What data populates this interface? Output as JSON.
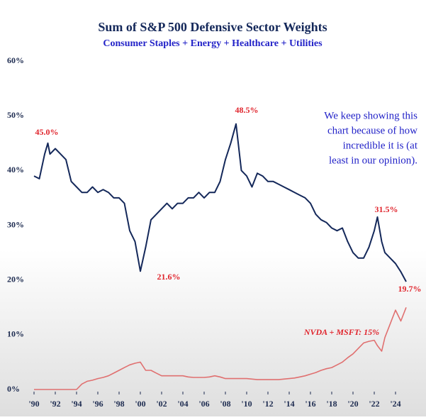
{
  "chart_data": {
    "type": "line",
    "title": "Sum of S&P 500 Defensive Sector Weights",
    "subtitle": "Consumer Staples + Energy + Healthcare + Utilities",
    "annotations": [
      "45.0%",
      "21.6%",
      "48.5%",
      "31.5%",
      "19.7%",
      "NVDA + MSFT: 15%"
    ],
    "note_lines": [
      "We keep showing this",
      "chart because of how",
      "incredible it is (at",
      "least in our opinion)."
    ],
    "x": [
      1990,
      1990.5,
      1991,
      1991.3,
      1991.5,
      1992,
      1992.5,
      1993,
      1993.5,
      1994,
      1994.5,
      1995,
      1995.5,
      1996,
      1996.5,
      1997,
      1997.5,
      1998,
      1998.5,
      1999,
      1999.5,
      2000,
      2000.5,
      2001,
      2001.5,
      2002,
      2002.5,
      2003,
      2003.5,
      2004,
      2004.5,
      2005,
      2005.5,
      2006,
      2006.5,
      2007,
      2007.5,
      2008,
      2008.5,
      2009,
      2009.5,
      2010,
      2010.5,
      2011,
      2011.5,
      2012,
      2012.5,
      2013,
      2013.5,
      2014,
      2014.5,
      2015,
      2015.5,
      2016,
      2016.5,
      2017,
      2017.5,
      2018,
      2018.5,
      2019,
      2019.5,
      2020,
      2020.5,
      2021,
      2021.5,
      2022,
      2022.3,
      2022.7,
      2023,
      2023.5,
      2024,
      2024.5,
      2025
    ],
    "series": [
      {
        "name": "Defensive Sectors",
        "color": "#14285a",
        "values": [
          39,
          38.5,
          43,
          45.0,
          43,
          44,
          43,
          42,
          38,
          37,
          36,
          36,
          37,
          36,
          36.5,
          36,
          35,
          35,
          34,
          29,
          27,
          21.6,
          26,
          31,
          32,
          33,
          34,
          33,
          34,
          34,
          35,
          35,
          36,
          35,
          36,
          36,
          38,
          42,
          45,
          48.5,
          40,
          39,
          37,
          39.5,
          39,
          38,
          38,
          37.5,
          37,
          36.5,
          36,
          35.5,
          35,
          34,
          32,
          31,
          30.5,
          29.5,
          29,
          29.5,
          27,
          25,
          24,
          24,
          26,
          29,
          31.5,
          27,
          25,
          24,
          23,
          21.5,
          19.7
        ]
      },
      {
        "name": "NVDA + MSFT",
        "color": "#e07070",
        "values": [
          0,
          0,
          0,
          0,
          0,
          0,
          0,
          0,
          0,
          0,
          1,
          1.5,
          1.7,
          2,
          2.2,
          2.5,
          3,
          3.5,
          4,
          4.5,
          4.8,
          5,
          3.5,
          3.5,
          3,
          2.5,
          2.5,
          2.5,
          2.5,
          2.5,
          2.3,
          2.2,
          2.2,
          2.2,
          2.3,
          2.5,
          2.3,
          2,
          2,
          2,
          2,
          2,
          1.9,
          1.8,
          1.8,
          1.8,
          1.8,
          1.8,
          1.9,
          2,
          2.1,
          2.3,
          2.5,
          2.8,
          3.1,
          3.5,
          3.8,
          4,
          4.5,
          5,
          5.8,
          6.5,
          7.5,
          8.5,
          8.8,
          9,
          8,
          7,
          9.5,
          12,
          14.5,
          12.5,
          15
        ]
      }
    ],
    "xlim": [
      1990,
      2025.5
    ],
    "xticks": [
      {
        "value": 1990,
        "label": "'90"
      },
      {
        "value": 1992,
        "label": "'92"
      },
      {
        "value": 1994,
        "label": "'94"
      },
      {
        "value": 1996,
        "label": "'96"
      },
      {
        "value": 1998,
        "label": "'98"
      },
      {
        "value": 2000,
        "label": "'00"
      },
      {
        "value": 2002,
        "label": "'02"
      },
      {
        "value": 2004,
        "label": "'04"
      },
      {
        "value": 2006,
        "label": "'06"
      },
      {
        "value": 2008,
        "label": "'08"
      },
      {
        "value": 2010,
        "label": "'10"
      },
      {
        "value": 2012,
        "label": "'12"
      },
      {
        "value": 2014,
        "label": "'14"
      },
      {
        "value": 2016,
        "label": "'16"
      },
      {
        "value": 2018,
        "label": "'18"
      },
      {
        "value": 2020,
        "label": "'20"
      },
      {
        "value": 2022,
        "label": "'22"
      },
      {
        "value": 2024,
        "label": "'24"
      }
    ],
    "ylim": [
      0,
      60
    ],
    "yticks": [
      {
        "value": 0,
        "label": "0%"
      },
      {
        "value": 10,
        "label": "10%"
      },
      {
        "value": 20,
        "label": "20%"
      },
      {
        "value": 30,
        "label": "30%"
      },
      {
        "value": 40,
        "label": "40%"
      },
      {
        "value": 50,
        "label": "50%"
      },
      {
        "value": 60,
        "label": "60%"
      }
    ]
  }
}
